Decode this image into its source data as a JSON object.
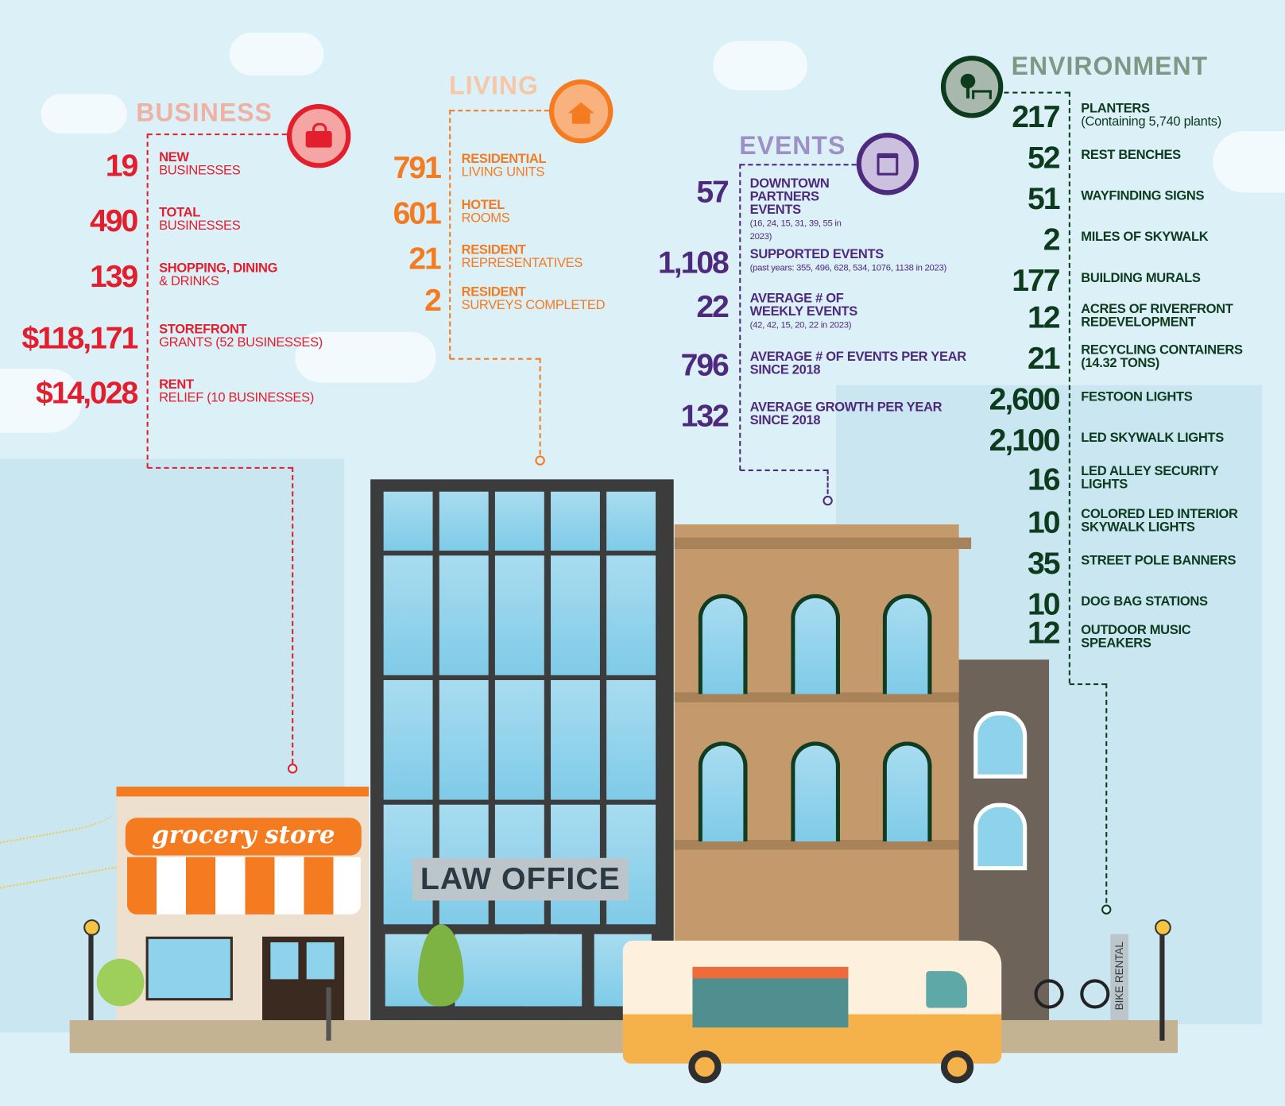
{
  "colors": {
    "business": "#e31e2d",
    "living": "#f47b20",
    "events": "#4e2a7f",
    "environment": "#0d3b1e",
    "sky": "#dcf0f8"
  },
  "business": {
    "title": "BUSINESS",
    "icon": "shopping-bag-icon",
    "items": [
      {
        "value": "19",
        "label": "NEW",
        "sub": "BUSINESSES"
      },
      {
        "value": "490",
        "label": "TOTAL",
        "sub": "BUSINESSES"
      },
      {
        "value": "139",
        "label": "SHOPPING, DINING",
        "sub": "& DRINKS"
      },
      {
        "value": "$118,171",
        "label": "STOREFRONT",
        "sub": "GRANTS (52 BUSINESSES)"
      },
      {
        "value": "$14,028",
        "label": "RENT",
        "sub": "RELIEF (10 BUSINESSES)"
      }
    ]
  },
  "living": {
    "title": "LIVING",
    "icon": "home-icon",
    "items": [
      {
        "value": "791",
        "label": "RESIDENTIAL",
        "sub": "LIVING UNITS"
      },
      {
        "value": "601",
        "label": "HOTEL",
        "sub": "ROOMS"
      },
      {
        "value": "21",
        "label": "RESIDENT",
        "sub": "REPRESENTATIVES"
      },
      {
        "value": "2",
        "label": "RESIDENT",
        "sub": "SURVEYS COMPLETED"
      }
    ]
  },
  "events": {
    "title": "EVENTS",
    "icon": "calendar-icon",
    "items": [
      {
        "value": "57",
        "label": "DOWNTOWN PARTNERS EVENTS",
        "note": "(16, 24, 15, 31, 39, 55 in 2023)"
      },
      {
        "value": "1,108",
        "label": "SUPPORTED EVENTS",
        "note": "(past years: 355, 496, 628, 534, 1076, 1138 in 2023)"
      },
      {
        "value": "22",
        "label": "AVERAGE # OF WEEKLY EVENTS",
        "note": "(42, 42, 15, 20, 22 in 2023)"
      },
      {
        "value": "796",
        "label": "AVERAGE # OF EVENTS PER YEAR SINCE 2018",
        "note": ""
      },
      {
        "value": "132",
        "label": "AVERAGE GROWTH PER YEAR SINCE 2018",
        "note": ""
      }
    ]
  },
  "environment": {
    "title": "ENVIRONMENT",
    "icon": "tree-bench-icon",
    "items": [
      {
        "value": "217",
        "label": "PLANTERS",
        "note": "(Containing 5,740 plants)"
      },
      {
        "value": "52",
        "label": "REST BENCHES"
      },
      {
        "value": "51",
        "label": "WAYFINDING SIGNS"
      },
      {
        "value": "2",
        "label": "MILES OF SKYWALK"
      },
      {
        "value": "177",
        "label": "BUILDING MURALS"
      },
      {
        "value": "12",
        "label": "ACRES OF RIVERFRONT REDEVELOPMENT"
      },
      {
        "value": "21",
        "label": "RECYCLING CONTAINERS (14.32 TONS)"
      },
      {
        "value": "2,600",
        "label": "FESTOON LIGHTS"
      },
      {
        "value": "2,100",
        "label": "LED SKYWALK LIGHTS"
      },
      {
        "value": "16",
        "label": "LED ALLEY SECURITY LIGHTS"
      },
      {
        "value": "10",
        "label": "COLORED LED INTERIOR SKYWALK LIGHTS"
      },
      {
        "value": "35",
        "label": "STREET POLE BANNERS"
      },
      {
        "value": "10",
        "label": "DOG BAG STATIONS"
      },
      {
        "value": "12",
        "label": "OUTDOOR MUSIC SPEAKERS"
      }
    ]
  },
  "scene": {
    "grocery_sign": "grocery store",
    "law_sign": "LAW OFFICE",
    "bike_sign": "BIKE RENTAL"
  }
}
